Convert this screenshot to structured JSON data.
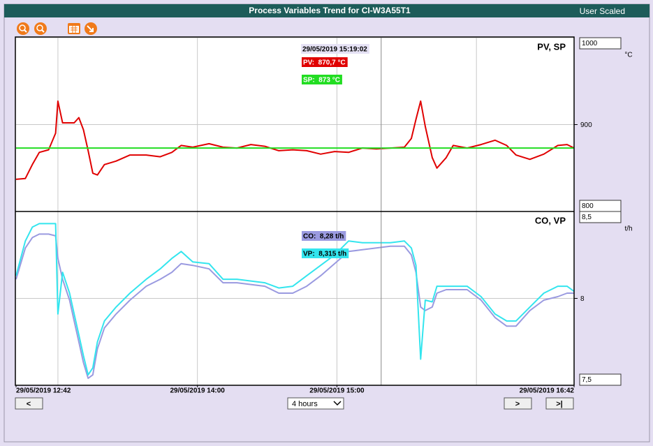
{
  "header": {
    "title": "Process Variables Trend for CI-W3A55T1",
    "mode": "User Scaled"
  },
  "cursor": {
    "value": "15:19:02",
    "label": "29/05/2019 15:19:02"
  },
  "controls": {
    "prev": "<",
    "range": "4 hours",
    "next": ">",
    "last": ">|"
  },
  "chart_data": [
    {
      "type": "line",
      "title": "PV, SP",
      "unit": "°C",
      "x": [
        "12:42",
        "12:46",
        "12:49",
        "12:52",
        "12:56",
        "12:59",
        "13:00",
        "13:02",
        "13:05",
        "13:07",
        "13:09",
        "13:11",
        "13:13",
        "13:15",
        "13:17",
        "13:20",
        "13:25",
        "13:31",
        "13:38",
        "13:44",
        "13:49",
        "13:53",
        "13:58",
        "14:05",
        "14:11",
        "14:17",
        "14:23",
        "14:29",
        "14:35",
        "14:41",
        "14:47",
        "14:53",
        "14:59",
        "15:05",
        "15:11",
        "15:17",
        "15:23",
        "15:29",
        "15:32",
        "15:34",
        "15:36",
        "15:38",
        "15:41",
        "15:43",
        "15:47",
        "15:50",
        "15:56",
        "16:02",
        "16:08",
        "16:13",
        "16:17",
        "16:23",
        "16:29",
        "16:35",
        "16:39",
        "16:42"
      ],
      "xlim": [
        "12:42",
        "16:42"
      ],
      "xgrid": [
        "13:00",
        "14:00",
        "15:00",
        "16:00"
      ],
      "ylim": [
        800,
        1000
      ],
      "yticks": [
        800,
        900,
        1000
      ],
      "grid": true,
      "series": [
        {
          "readout": "PV:  870,7 °C",
          "color": "#e00000",
          "values": [
            837,
            838,
            854,
            868,
            871,
            890,
            927,
            902,
            902,
            902,
            908,
            894,
            870,
            844,
            842,
            854,
            858,
            865,
            865,
            863,
            868,
            876,
            874,
            878,
            874,
            873,
            877,
            875,
            870,
            871,
            870,
            866,
            869,
            868,
            873,
            872,
            873,
            874,
            884,
            906,
            927,
            898,
            862,
            850,
            862,
            876,
            873,
            877,
            882,
            876,
            865,
            860,
            866,
            876,
            877,
            873
          ]
        },
        {
          "readout": "SP:  873 °C",
          "color": "#22dd22",
          "values": [
            873,
            873,
            873,
            873,
            873,
            873,
            873,
            873,
            873,
            873,
            873,
            873,
            873,
            873,
            873,
            873,
            873,
            873,
            873,
            873,
            873,
            873,
            873,
            873,
            873,
            873,
            873,
            873,
            873,
            873,
            873,
            873,
            873,
            873,
            873,
            873,
            873,
            873,
            873,
            873,
            873,
            873,
            873,
            873,
            873,
            873,
            873,
            873,
            873,
            873,
            873,
            873,
            873,
            873,
            873,
            873
          ]
        }
      ]
    },
    {
      "type": "line",
      "title": "CO, VP",
      "unit": "t/h",
      "x": [
        "12:42",
        "12:46",
        "12:49",
        "12:52",
        "12:56",
        "12:59",
        "13:00",
        "13:02",
        "13:05",
        "13:07",
        "13:09",
        "13:11",
        "13:13",
        "13:15",
        "13:17",
        "13:20",
        "13:25",
        "13:31",
        "13:38",
        "13:44",
        "13:49",
        "13:53",
        "13:58",
        "14:05",
        "14:11",
        "14:17",
        "14:23",
        "14:29",
        "14:35",
        "14:41",
        "14:47",
        "14:53",
        "14:59",
        "15:05",
        "15:11",
        "15:17",
        "15:23",
        "15:29",
        "15:32",
        "15:34",
        "15:36",
        "15:38",
        "15:41",
        "15:43",
        "15:47",
        "15:50",
        "15:56",
        "16:02",
        "16:08",
        "16:13",
        "16:17",
        "16:23",
        "16:29",
        "16:35",
        "16:39",
        "16:42"
      ],
      "xlim": [
        "12:42",
        "16:42"
      ],
      "xgrid": [
        "13:00",
        "14:00",
        "15:00",
        "16:00"
      ],
      "xticks": [
        {
          "value": "12:42",
          "label": "29/05/2019 12:42"
        },
        {
          "value": "14:00",
          "label": "29/05/2019 14:00"
        },
        {
          "value": "15:00",
          "label": "29/05/2019 15:00"
        },
        {
          "value": "16:42",
          "label": "29/05/2019 16:42"
        }
      ],
      "ylim": [
        7.5,
        8.5
      ],
      "yticks": [
        {
          "value": 7.5,
          "label": "7,5"
        },
        8,
        {
          "value": 8.5,
          "label": "8,5"
        }
      ],
      "grid": true,
      "series": [
        {
          "readout": "CO:  8,28 t/h",
          "color": "#9a9ae0",
          "values": [
            8.11,
            8.29,
            8.35,
            8.37,
            8.37,
            8.36,
            8.23,
            8.11,
            7.99,
            7.87,
            7.75,
            7.63,
            7.54,
            7.56,
            7.71,
            7.83,
            7.91,
            7.99,
            8.07,
            8.11,
            8.15,
            8.2,
            8.19,
            8.17,
            8.09,
            8.09,
            8.08,
            8.07,
            8.03,
            8.03,
            8.07,
            8.13,
            8.2,
            8.27,
            8.28,
            8.29,
            8.3,
            8.3,
            8.25,
            8.15,
            7.95,
            7.93,
            7.95,
            8.03,
            8.05,
            8.05,
            8.05,
            7.99,
            7.89,
            7.84,
            7.84,
            7.93,
            7.99,
            8.01,
            8.03,
            8.03
          ]
        },
        {
          "readout": "VP:  8,315 t/h",
          "color": "#33e5ee",
          "values": [
            8.13,
            8.33,
            8.41,
            8.43,
            8.43,
            8.43,
            7.91,
            8.15,
            8.03,
            7.91,
            7.79,
            7.67,
            7.56,
            7.6,
            7.75,
            7.87,
            7.95,
            8.03,
            8.11,
            8.17,
            8.23,
            8.27,
            8.21,
            8.2,
            8.11,
            8.11,
            8.1,
            8.09,
            8.06,
            8.07,
            8.13,
            8.19,
            8.25,
            8.33,
            8.32,
            8.32,
            8.32,
            8.33,
            8.29,
            8.19,
            7.65,
            7.99,
            7.98,
            8.07,
            8.07,
            8.07,
            8.07,
            8.01,
            7.91,
            7.87,
            7.87,
            7.95,
            8.03,
            8.07,
            8.07,
            8.04
          ]
        }
      ]
    }
  ]
}
